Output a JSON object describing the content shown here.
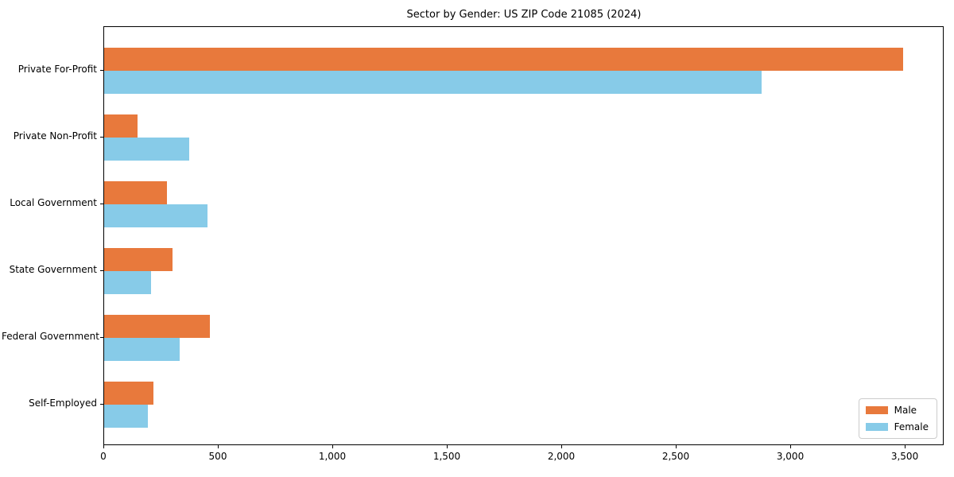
{
  "chart_data": {
    "type": "bar",
    "orientation": "horizontal",
    "title": "Sector by Gender: US ZIP Code 21085 (2024)",
    "categories": [
      "Private For-Profit",
      "Private Non-Profit",
      "Local Government",
      "State Government",
      "Federal Government",
      "Self-Employed"
    ],
    "series": [
      {
        "name": "Male",
        "color": "#e8793c",
        "values": [
          3490,
          145,
          275,
          300,
          460,
          215
        ]
      },
      {
        "name": "Female",
        "color": "#87cbe8",
        "values": [
          2870,
          370,
          450,
          205,
          330,
          190
        ]
      }
    ],
    "xlabel": "",
    "ylabel": "",
    "xlim": [
      0,
      3670
    ],
    "xticks": [
      0,
      500,
      1000,
      1500,
      2000,
      2500,
      3000,
      3500
    ],
    "xtick_labels": [
      "0",
      "500",
      "1,000",
      "1,500",
      "2,000",
      "2,500",
      "3,000",
      "3,500"
    ],
    "grid": false,
    "legend": {
      "position": "lower right"
    }
  }
}
